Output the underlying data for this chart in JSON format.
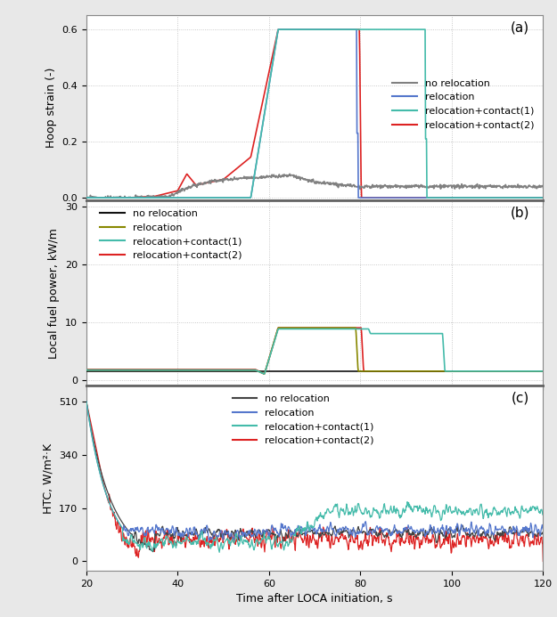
{
  "title": "",
  "xlabel": "Time after LOCA initiation, s",
  "xlim": [
    20,
    120
  ],
  "xticks": [
    20,
    40,
    60,
    80,
    100,
    120
  ],
  "subplot_a": {
    "ylabel": "Hoop strain (-)",
    "ylim": [
      -0.01,
      0.65
    ],
    "yticks": [
      0.0,
      0.2,
      0.4,
      0.6
    ],
    "label": "(a)",
    "colors": [
      "#808080",
      "#5577cc",
      "#44bbaa",
      "#dd2222"
    ],
    "legend_labels": [
      "no relocation",
      "relocation",
      "relocation+contact(1)",
      "relocation+contact(2)"
    ]
  },
  "subplot_b": {
    "ylabel": "Local fuel power, kW/m",
    "ylim": [
      -1,
      31
    ],
    "yticks": [
      0,
      10,
      20,
      30
    ],
    "label": "(b)",
    "colors": [
      "#111111",
      "#888800",
      "#44bbaa",
      "#dd2222"
    ],
    "legend_labels": [
      "no relocation",
      "relocation",
      "relocation+contact(1)",
      "relocation+contact(2)"
    ]
  },
  "subplot_c": {
    "ylabel": "HTC, W/m²·K",
    "ylim": [
      -30,
      560
    ],
    "yticks": [
      0,
      170,
      340,
      510
    ],
    "label": "(c)",
    "colors": [
      "#444444",
      "#5577cc",
      "#44bbaa",
      "#dd2222"
    ],
    "legend_labels": [
      "no relocation",
      "relocation",
      "relocation+contact(1)",
      "relocation+contact(2)"
    ]
  },
  "background_color": "#e8e8e8",
  "plot_bg": "#ffffff"
}
